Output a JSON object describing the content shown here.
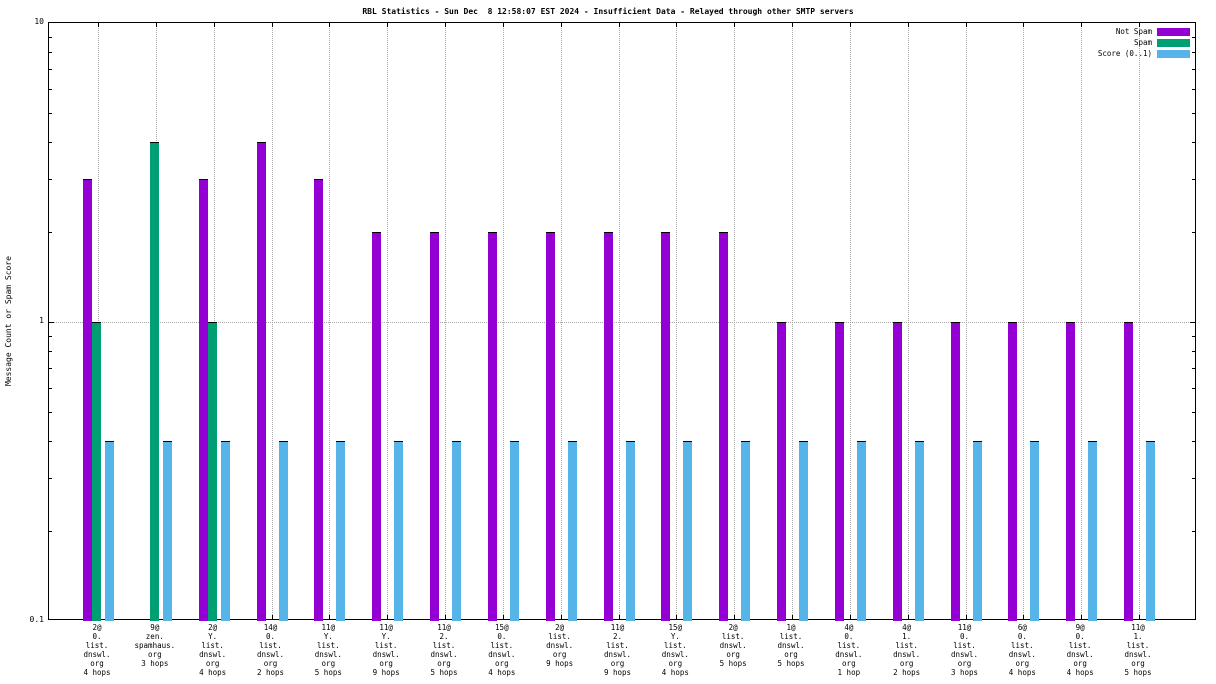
{
  "title": "RBL Statistics - Sun Dec  8 12:58:07 EST 2024 - Insufficient Data - Relayed through other SMTP servers",
  "legend": [
    {
      "label": "Not Spam",
      "color": "#9400d3"
    },
    {
      "label": "Spam",
      "color": "#009e73"
    },
    {
      "label": "Score (0..1)",
      "color": "#56b4e9"
    }
  ],
  "chart_data": {
    "type": "bar",
    "title": "RBL Statistics - Sun Dec  8 12:58:07 EST 2024 - Insufficient Data - Relayed through other SMTP servers",
    "xlabel": "",
    "ylabel": "Message Count or Spam Score",
    "yscale": "log",
    "ylim": [
      0.1,
      10
    ],
    "grid": true,
    "legend_position": "top-right",
    "yticks": [
      {
        "label": "10",
        "value": 10
      },
      {
        "label": "1",
        "value": 1
      },
      {
        "label": "0.1",
        "value": 0.1
      }
    ],
    "categories": [
      [
        "2@",
        "0.",
        "list.",
        "dnswl.",
        "org",
        "4 hops"
      ],
      [
        "9@",
        "zen.",
        "spamhaus.",
        "org",
        "3 hops"
      ],
      [
        "2@",
        "Y.",
        "list.",
        "dnswl.",
        "org",
        "4 hops"
      ],
      [
        "14@",
        "0.",
        "list.",
        "dnswl.",
        "org",
        "2 hops"
      ],
      [
        "11@",
        "Y.",
        "list.",
        "dnswl.",
        "org",
        "5 hops"
      ],
      [
        "11@",
        "Y.",
        "list.",
        "dnswl.",
        "org",
        "9 hops"
      ],
      [
        "11@",
        "2.",
        "list.",
        "dnswl.",
        "org",
        "5 hops"
      ],
      [
        "15@",
        "0.",
        "list.",
        "dnswl.",
        "org",
        "4 hops"
      ],
      [
        "2@",
        "list.",
        "dnswl.",
        "org",
        "9 hops"
      ],
      [
        "11@",
        "2.",
        "list.",
        "dnswl.",
        "org",
        "9 hops"
      ],
      [
        "15@",
        "Y.",
        "list.",
        "dnswl.",
        "org",
        "4 hops"
      ],
      [
        "2@",
        "list.",
        "dnswl.",
        "org",
        "5 hops"
      ],
      [
        "1@",
        "list.",
        "dnswl.",
        "org",
        "5 hops"
      ],
      [
        "4@",
        "0.",
        "list.",
        "dnswl.",
        "org",
        "1 hop"
      ],
      [
        "4@",
        "1.",
        "list.",
        "dnswl.",
        "org",
        "2 hops"
      ],
      [
        "11@",
        "0.",
        "list.",
        "dnswl.",
        "org",
        "3 hops"
      ],
      [
        "6@",
        "0.",
        "list.",
        "dnswl.",
        "org",
        "4 hops"
      ],
      [
        "9@",
        "0.",
        "list.",
        "dnswl.",
        "org",
        "4 hops"
      ],
      [
        "11@",
        "1.",
        "list.",
        "dnswl.",
        "org",
        "5 hops"
      ]
    ],
    "series": [
      {
        "name": "Not Spam",
        "color": "#9400d3",
        "values": [
          3,
          null,
          3,
          4,
          3,
          2,
          2,
          2,
          2,
          2,
          2,
          2,
          1,
          1,
          1,
          1,
          1,
          1,
          1
        ]
      },
      {
        "name": "Spam",
        "color": "#009e73",
        "values": [
          1,
          4,
          1,
          null,
          null,
          null,
          null,
          null,
          null,
          null,
          null,
          null,
          null,
          null,
          null,
          null,
          null,
          null,
          null
        ]
      },
      {
        "name": "Score (0..1)",
        "color": "#56b4e9",
        "values": [
          0.4,
          0.4,
          0.4,
          0.4,
          0.4,
          0.4,
          0.4,
          0.4,
          0.4,
          0.4,
          0.4,
          0.4,
          0.4,
          0.4,
          0.4,
          0.4,
          0.4,
          0.4,
          0.4
        ]
      }
    ]
  }
}
